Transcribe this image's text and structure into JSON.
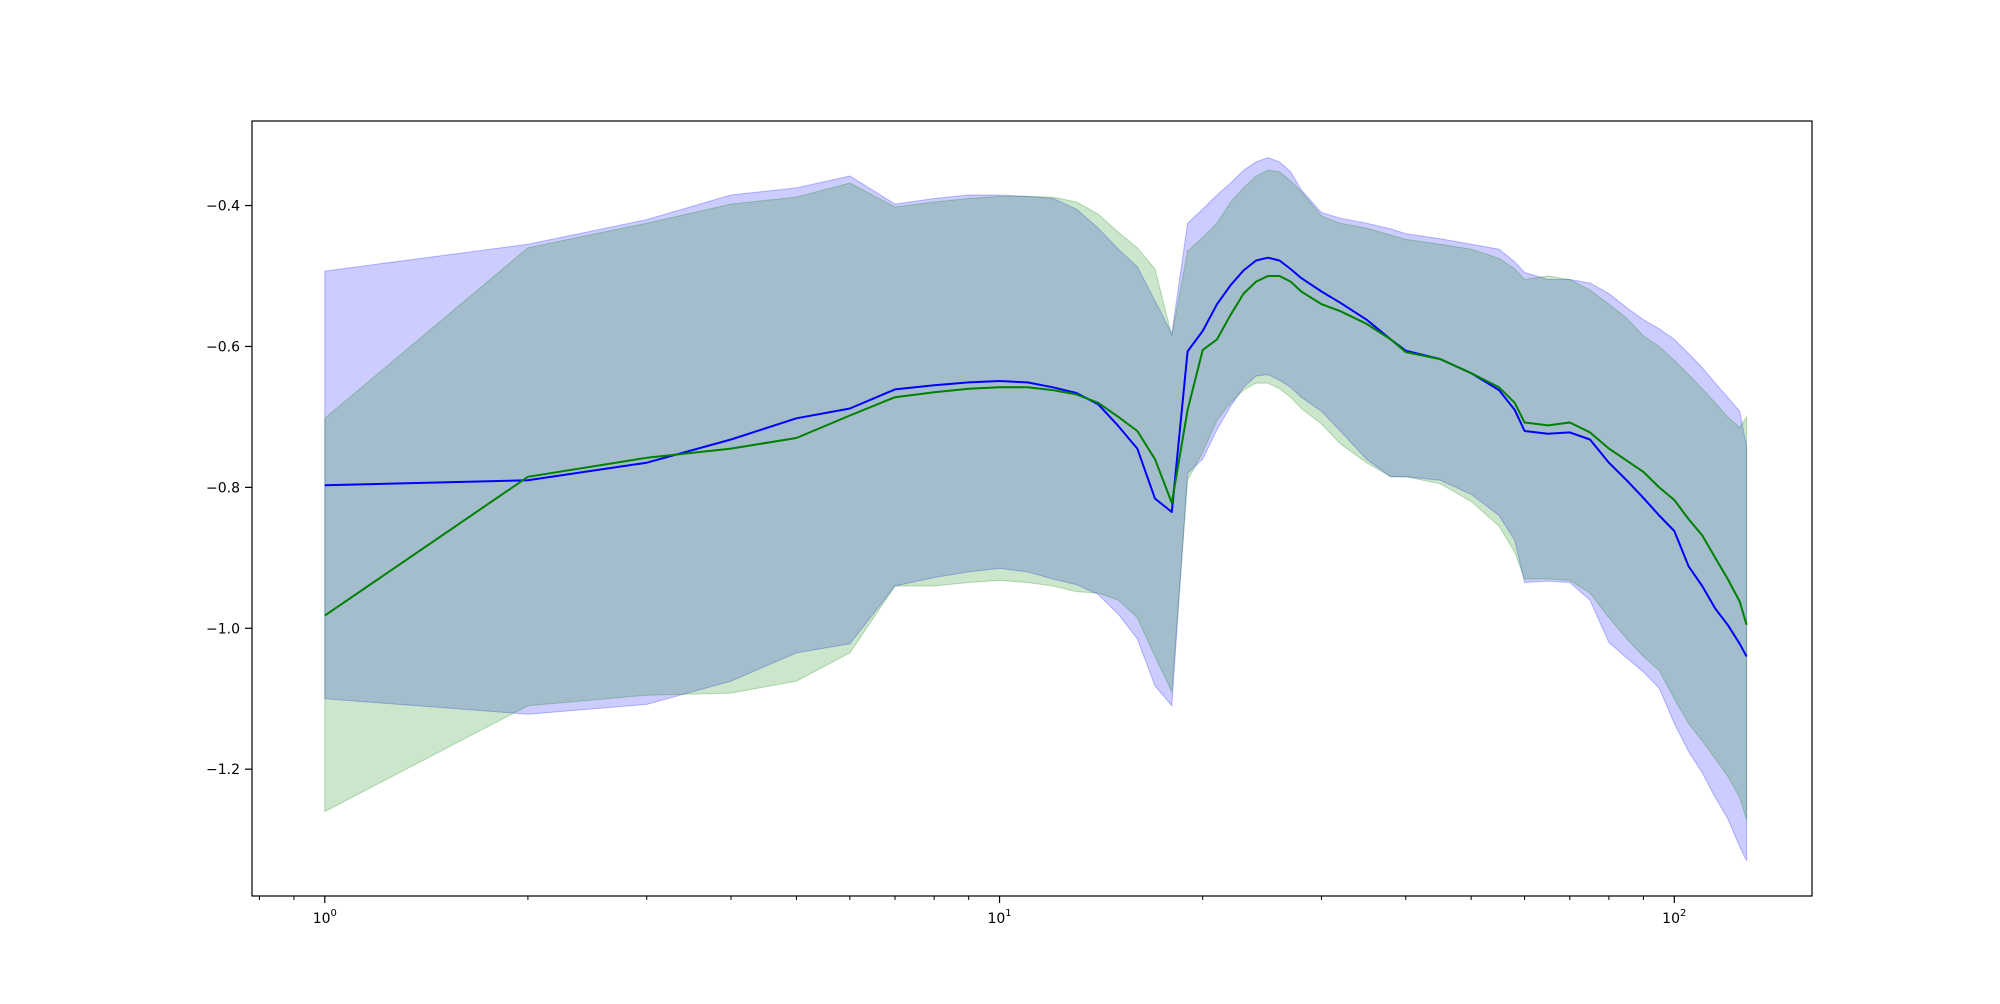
{
  "chart_data": {
    "type": "line",
    "title": "",
    "xlabel": "",
    "ylabel": "",
    "xscale": "log",
    "xlim": [
      0.78,
      160
    ],
    "ylim": [
      -1.38,
      -0.28
    ],
    "grid": false,
    "legend": "none",
    "x_ticks": [
      {
        "value": 1,
        "base": "10",
        "exp": "0"
      },
      {
        "value": 10,
        "base": "10",
        "exp": "1"
      },
      {
        "value": 100,
        "base": "10",
        "exp": "2"
      }
    ],
    "y_ticks": [
      {
        "value": -0.4,
        "label": "−0.4"
      },
      {
        "value": -0.6,
        "label": "−0.6"
      },
      {
        "value": -0.8,
        "label": "−0.8"
      },
      {
        "value": -1.0,
        "label": "−1.0"
      },
      {
        "value": -1.2,
        "label": "−1.2"
      }
    ],
    "series": [
      {
        "color": "#0000ff",
        "band_color": "#0000ff",
        "x": [
          1,
          2,
          3,
          4,
          5,
          6,
          7,
          8,
          9,
          10,
          11,
          12,
          13,
          14,
          15,
          16,
          17,
          18,
          19,
          20,
          21,
          22,
          23,
          24,
          25,
          26,
          27,
          28,
          30,
          32,
          35,
          38,
          40,
          45,
          50,
          55,
          58,
          60,
          65,
          70,
          75,
          80,
          85,
          90,
          95,
          100,
          105,
          110,
          115,
          120,
          125,
          128
        ],
        "y": [
          -0.797,
          -0.79,
          -0.765,
          -0.732,
          -0.702,
          -0.688,
          -0.661,
          -0.655,
          -0.651,
          -0.649,
          -0.651,
          -0.658,
          -0.666,
          -0.682,
          -0.713,
          -0.745,
          -0.816,
          -0.835,
          -0.607,
          -0.578,
          -0.54,
          -0.513,
          -0.492,
          -0.478,
          -0.474,
          -0.478,
          -0.49,
          -0.503,
          -0.522,
          -0.538,
          -0.562,
          -0.59,
          -0.606,
          -0.618,
          -0.638,
          -0.662,
          -0.69,
          -0.72,
          -0.724,
          -0.722,
          -0.732,
          -0.765,
          -0.79,
          -0.815,
          -0.84,
          -0.862,
          -0.912,
          -0.94,
          -0.972,
          -0.995,
          -1.022,
          -1.04
        ],
        "upper": [
          -0.493,
          -0.455,
          -0.42,
          -0.385,
          -0.375,
          -0.358,
          -0.398,
          -0.39,
          -0.385,
          -0.385,
          -0.387,
          -0.39,
          -0.405,
          -0.432,
          -0.462,
          -0.487,
          -0.535,
          -0.582,
          -0.425,
          -0.405,
          -0.385,
          -0.368,
          -0.35,
          -0.338,
          -0.332,
          -0.338,
          -0.352,
          -0.378,
          -0.41,
          -0.418,
          -0.425,
          -0.433,
          -0.44,
          -0.447,
          -0.455,
          -0.462,
          -0.48,
          -0.495,
          -0.505,
          -0.505,
          -0.51,
          -0.525,
          -0.545,
          -0.562,
          -0.575,
          -0.59,
          -0.61,
          -0.63,
          -0.652,
          -0.672,
          -0.692,
          -0.742
        ],
        "lower": [
          -1.1,
          -1.122,
          -1.108,
          -1.075,
          -1.035,
          -1.022,
          -0.94,
          -0.928,
          -0.92,
          -0.915,
          -0.92,
          -0.93,
          -0.938,
          -0.952,
          -0.98,
          -1.015,
          -1.082,
          -1.11,
          -0.78,
          -0.76,
          -0.718,
          -0.685,
          -0.658,
          -0.642,
          -0.64,
          -0.648,
          -0.658,
          -0.672,
          -0.692,
          -0.72,
          -0.76,
          -0.785,
          -0.785,
          -0.79,
          -0.81,
          -0.84,
          -0.875,
          -0.935,
          -0.933,
          -0.935,
          -0.96,
          -1.02,
          -1.042,
          -1.062,
          -1.085,
          -1.135,
          -1.175,
          -1.205,
          -1.24,
          -1.27,
          -1.31,
          -1.33
        ]
      },
      {
        "color": "#008000",
        "band_color": "#008000",
        "x": [
          1,
          2,
          3,
          4,
          5,
          6,
          7,
          8,
          9,
          10,
          11,
          12,
          13,
          14,
          15,
          16,
          17,
          18,
          19,
          20,
          21,
          22,
          23,
          24,
          25,
          26,
          27,
          28,
          30,
          32,
          35,
          38,
          40,
          45,
          50,
          55,
          58,
          60,
          65,
          70,
          75,
          80,
          85,
          90,
          95,
          100,
          105,
          110,
          115,
          120,
          125,
          128
        ],
        "y": [
          -0.982,
          -0.785,
          -0.758,
          -0.745,
          -0.73,
          -0.698,
          -0.672,
          -0.665,
          -0.66,
          -0.658,
          -0.658,
          -0.662,
          -0.668,
          -0.68,
          -0.7,
          -0.72,
          -0.76,
          -0.822,
          -0.69,
          -0.605,
          -0.59,
          -0.555,
          -0.525,
          -0.508,
          -0.5,
          -0.5,
          -0.508,
          -0.522,
          -0.54,
          -0.55,
          -0.568,
          -0.59,
          -0.608,
          -0.618,
          -0.638,
          -0.658,
          -0.68,
          -0.708,
          -0.712,
          -0.708,
          -0.722,
          -0.745,
          -0.762,
          -0.778,
          -0.8,
          -0.818,
          -0.845,
          -0.868,
          -0.9,
          -0.93,
          -0.962,
          -0.995
        ],
        "upper": [
          -0.702,
          -0.46,
          -0.425,
          -0.398,
          -0.388,
          -0.368,
          -0.402,
          -0.395,
          -0.39,
          -0.387,
          -0.387,
          -0.388,
          -0.395,
          -0.412,
          -0.438,
          -0.46,
          -0.49,
          -0.585,
          -0.465,
          -0.445,
          -0.425,
          -0.395,
          -0.375,
          -0.358,
          -0.35,
          -0.352,
          -0.365,
          -0.38,
          -0.415,
          -0.425,
          -0.432,
          -0.442,
          -0.448,
          -0.455,
          -0.462,
          -0.475,
          -0.49,
          -0.505,
          -0.5,
          -0.505,
          -0.52,
          -0.54,
          -0.56,
          -0.585,
          -0.6,
          -0.62,
          -0.64,
          -0.66,
          -0.68,
          -0.7,
          -0.715,
          -0.7
        ],
        "lower": [
          -1.26,
          -1.11,
          -1.095,
          -1.092,
          -1.075,
          -1.035,
          -0.94,
          -0.94,
          -0.935,
          -0.932,
          -0.935,
          -0.94,
          -0.948,
          -0.95,
          -0.96,
          -0.985,
          -1.04,
          -1.09,
          -0.79,
          -0.75,
          -0.705,
          -0.68,
          -0.662,
          -0.652,
          -0.652,
          -0.66,
          -0.672,
          -0.688,
          -0.71,
          -0.738,
          -0.765,
          -0.785,
          -0.785,
          -0.795,
          -0.82,
          -0.855,
          -0.892,
          -0.93,
          -0.93,
          -0.932,
          -0.95,
          -0.985,
          -1.015,
          -1.04,
          -1.06,
          -1.1,
          -1.135,
          -1.16,
          -1.185,
          -1.21,
          -1.24,
          -1.272
        ]
      }
    ]
  }
}
